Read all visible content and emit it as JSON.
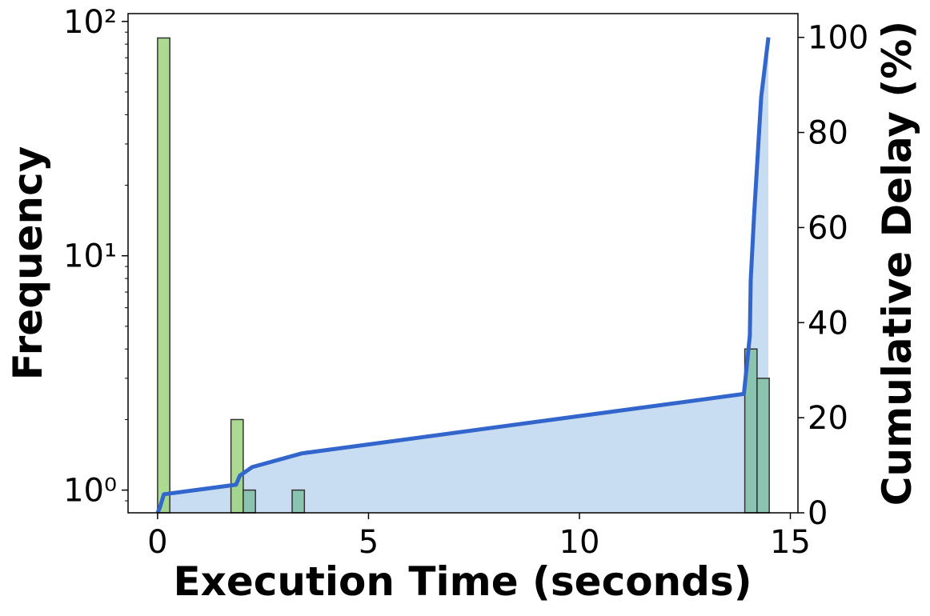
{
  "chart_data": {
    "type": "histogram",
    "xlabel": "Execution Time (seconds)",
    "ylabel": "Frequency",
    "y2label": "Cumulative Delay (%)",
    "xlim": [
      -0.7,
      15.18
    ],
    "xticks": [
      0,
      5,
      10,
      15
    ],
    "ylim": [
      0.8,
      108
    ],
    "yscale": "log",
    "yticks": [
      {
        "value": 1,
        "label": "10⁰"
      },
      {
        "value": 10,
        "label": "10¹"
      },
      {
        "value": 100,
        "label": "10²"
      }
    ],
    "yminorticks": [
      0.9,
      2,
      3,
      4,
      5,
      6,
      7,
      8,
      9,
      20,
      30,
      40,
      50,
      60,
      70,
      80,
      90
    ],
    "y2lim": [
      0,
      105
    ],
    "y2ticks": [
      0,
      20,
      40,
      60,
      80,
      100
    ],
    "bins": [
      0,
      0.29,
      0.58,
      0.87,
      1.16,
      1.45,
      1.74,
      2.03,
      2.32,
      2.61,
      2.9,
      3.19,
      3.48,
      3.77,
      4.06,
      4.35,
      4.64,
      4.93,
      5.22,
      5.51,
      5.8,
      6.09,
      6.38,
      6.67,
      6.96,
      7.25,
      7.54,
      7.83,
      8.12,
      8.41,
      8.7,
      8.99,
      9.28,
      9.57,
      9.86,
      10.15,
      10.44,
      10.73,
      11.02,
      11.31,
      11.6,
      11.89,
      12.18,
      12.47,
      12.76,
      13.05,
      13.34,
      13.63,
      13.92,
      14.21,
      14.5
    ],
    "series": [
      {
        "color": "#9dd47f",
        "values": [
          85,
          0,
          0,
          0,
          0,
          0,
          2,
          0,
          0,
          0,
          0,
          0,
          0,
          0,
          0,
          0,
          0,
          0,
          0,
          0,
          0,
          0,
          0,
          0,
          0,
          0,
          0,
          0,
          0,
          0,
          0,
          0,
          0,
          0,
          0,
          0,
          0,
          0,
          0,
          0,
          0,
          0,
          0,
          0,
          0,
          0,
          0,
          0,
          0,
          0
        ]
      },
      {
        "color": "#7fbfa6",
        "values": [
          0,
          0,
          0,
          0,
          0,
          0,
          0,
          1,
          0,
          0,
          0,
          1,
          0,
          0,
          0,
          0,
          0,
          0,
          0,
          0,
          0,
          0,
          0,
          0,
          0,
          0,
          0,
          0,
          0,
          0,
          0,
          0,
          0,
          0,
          0,
          0,
          0,
          0,
          0,
          0,
          0,
          0,
          0,
          0,
          0,
          0,
          0,
          0,
          4,
          3
        ]
      }
    ],
    "line": {
      "axis": "y2",
      "color": "#3366cc",
      "fill": "#c8dcf2",
      "x": [
        0,
        0.05,
        0.15,
        1.86,
        1.95,
        2.24,
        3.42,
        13.9,
        14.04,
        14.06,
        14.14,
        14.31,
        14.48
      ],
      "values": [
        0,
        1,
        3.9,
        5.9,
        7.8,
        9.6,
        12.5,
        25,
        37.3,
        49,
        62.6,
        87.5,
        100
      ]
    }
  }
}
